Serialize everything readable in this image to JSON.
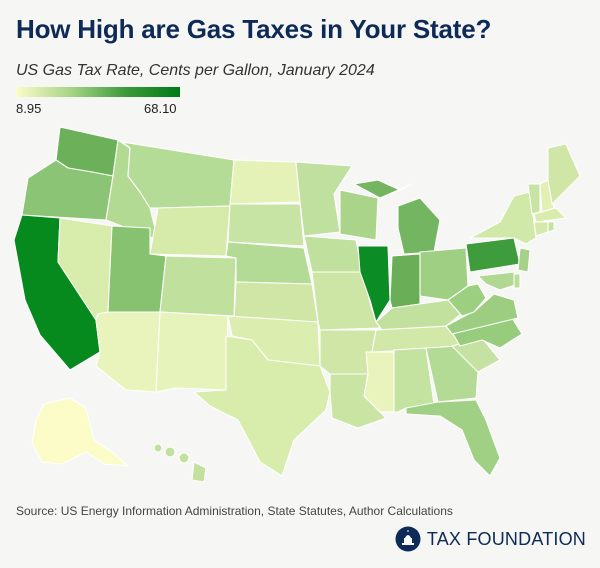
{
  "title": "How High are Gas Taxes in Your State?",
  "subtitle": "US Gas Tax Rate, Cents per Gallon, January 2024",
  "legend": {
    "min": "8.95",
    "max": "68.10",
    "colors": [
      "#fcfcc8",
      "#a7d488",
      "#3c9a3a",
      "#007a16"
    ]
  },
  "source": "Source: US Energy Information Administration, State Statutes, Author Calculations",
  "brand": "TAX FOUNDATION",
  "colors": {
    "title": "#0e2a56",
    "background": "#f6f6f4",
    "border": "#ffffff"
  }
}
